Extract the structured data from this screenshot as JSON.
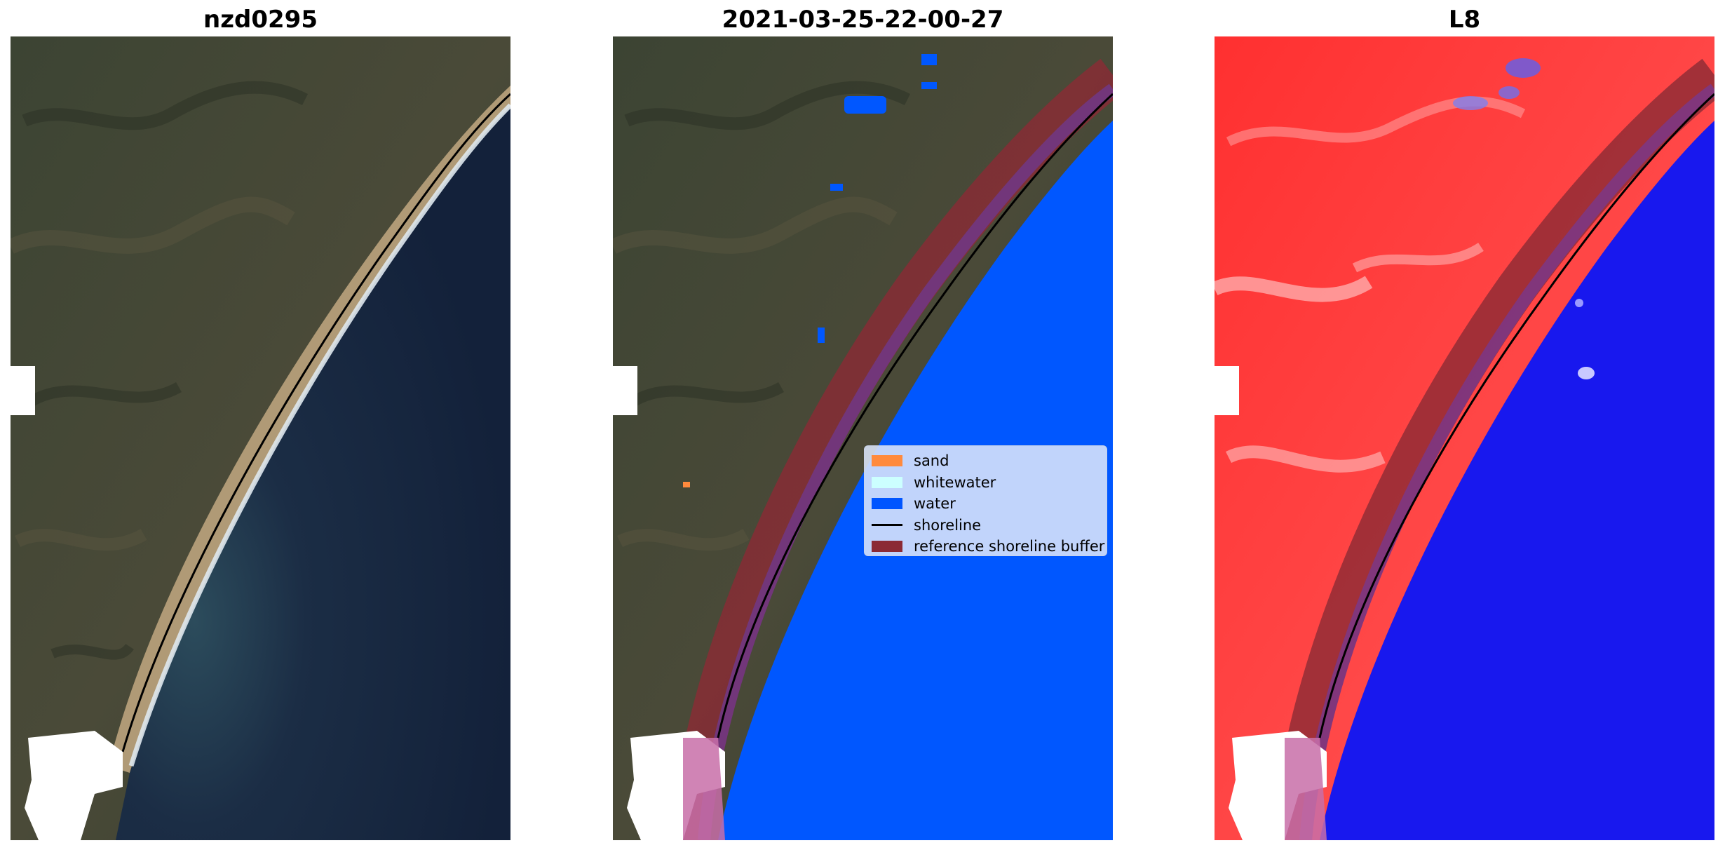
{
  "panels": [
    {
      "title": "nzd0295"
    },
    {
      "title": "2021-03-25-22-00-27"
    },
    {
      "title": "L8"
    }
  ],
  "legend": {
    "items": [
      {
        "label": "sand",
        "color": "#ff8a3d",
        "kind": "patch"
      },
      {
        "label": "whitewater",
        "color": "#ccffff",
        "kind": "patch"
      },
      {
        "label": "water",
        "color": "#0055ff",
        "kind": "patch"
      },
      {
        "label": "shoreline",
        "color": "#000000",
        "kind": "line"
      },
      {
        "label": "reference shoreline buffer",
        "color": "#8b2a35",
        "kind": "patch"
      }
    ]
  },
  "colors": {
    "land": "#3a4232",
    "ocean": "#14213d",
    "classified_water": "#0057ff",
    "index_land": "#ff2a2a",
    "index_water": "#1818ee",
    "buffer": "#8b2a35",
    "shoreline": "#000000"
  }
}
